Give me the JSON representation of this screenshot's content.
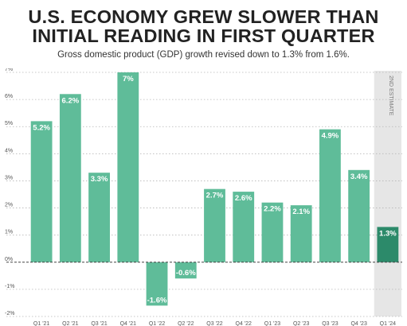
{
  "title_line1": "U.S. ECONOMY GREW SLOWER THAN",
  "title_line2": "INITIAL READING IN FIRST QUARTER",
  "subtitle": "Gross domestic product (GDP) growth revised down to 1.3% from 1.6%.",
  "estimate_label": "2ND ESTIMATE",
  "colors": {
    "bar": "#5fbc99",
    "bar_highlight": "#2c8a6a",
    "estimate_band": "#e6e6e6",
    "grid": "#b5b5b5",
    "zero_line": "#444444"
  },
  "chart_data": {
    "type": "bar",
    "title": "U.S. ECONOMY GREW SLOWER THAN INITIAL READING IN FIRST QUARTER",
    "subtitle": "Gross domestic product (GDP) growth revised down to 1.3% from 1.6%.",
    "xlabel": "",
    "ylabel": "",
    "ylim": [
      -2,
      7
    ],
    "yticks": [
      -2,
      -1,
      0,
      1,
      2,
      3,
      4,
      5,
      6,
      7
    ],
    "ytick_labels": [
      "-2%",
      "-1%",
      "0%",
      "1%",
      "2%",
      "3%",
      "4%",
      "5%",
      "6%",
      "7%"
    ],
    "grid": true,
    "categories": [
      "Q1 '21",
      "Q2 '21",
      "Q3 '21",
      "Q4 '21",
      "Q1 '22",
      "Q2 '22",
      "Q3 '22",
      "Q4 '22",
      "Q1 '23",
      "Q2 '23",
      "Q3 '23",
      "Q4 '23",
      "Q1 '24"
    ],
    "values": [
      5.2,
      6.2,
      3.3,
      7,
      -1.6,
      -0.6,
      2.7,
      2.6,
      2.2,
      2.1,
      4.9,
      3.4,
      1.3
    ],
    "data_labels": [
      "5.2%",
      "6.2%",
      "3.3%",
      "7%",
      "-1.6%",
      "-0.6%",
      "2.7%",
      "2.6%",
      "2.2%",
      "2.1%",
      "4.9%",
      "3.4%",
      "1.3%"
    ],
    "highlight_index": 12
  }
}
